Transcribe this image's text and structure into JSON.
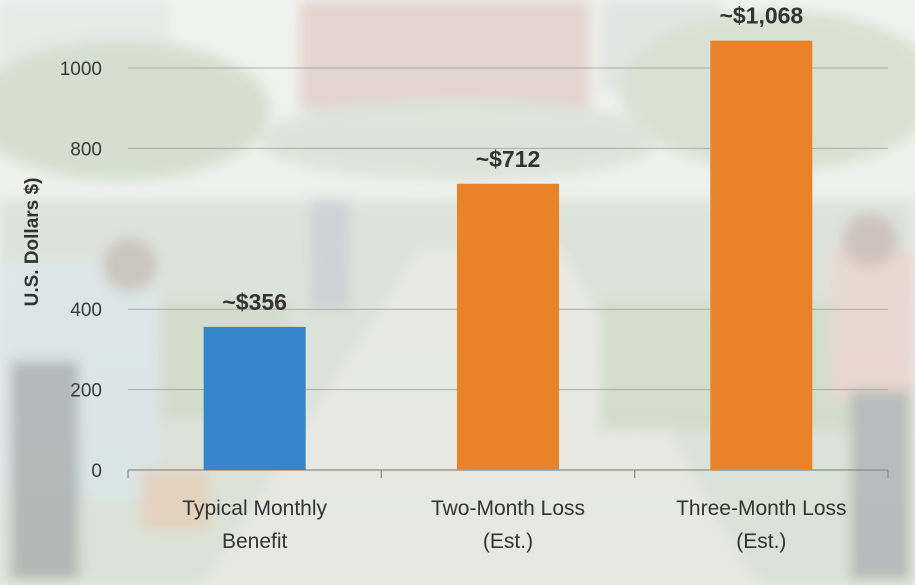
{
  "chart_data": {
    "type": "bar",
    "title": "",
    "xlabel": "",
    "ylabel": "U.S. Dollars $)",
    "categories": [
      [
        "Typical Monthly",
        "Benefit"
      ],
      [
        "Two-Month Loss",
        "(Est.)"
      ],
      [
        "Three-Month Loss",
        "(Est.)"
      ]
    ],
    "values": [
      356,
      712,
      1068
    ],
    "value_labels": [
      "~$356",
      "~$712",
      "~$1,068"
    ],
    "bar_colors": [
      "#3485c9",
      "#e98329",
      "#e98329"
    ],
    "y_ticks": [
      0,
      200,
      400,
      800,
      1000
    ],
    "grid": true,
    "legend": "none"
  }
}
